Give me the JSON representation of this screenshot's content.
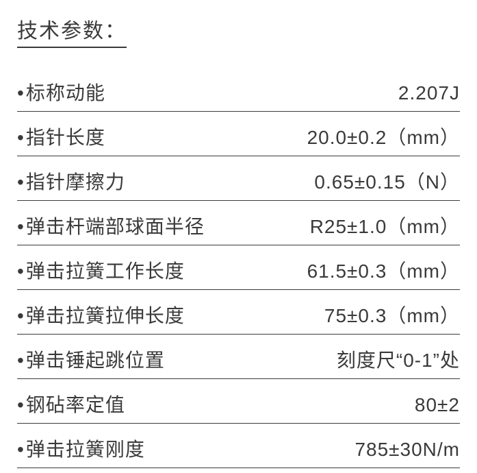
{
  "title": "技术参数：",
  "text_color": "#3a3a3a",
  "background_color": "#ffffff",
  "border_color": "#3a3a3a",
  "title_fontsize": 30,
  "row_fontsize": 28,
  "specs": [
    {
      "label": "标称动能",
      "value": "2.207J"
    },
    {
      "label": "指针长度",
      "value": "20.0±0.2（mm）"
    },
    {
      "label": "指针摩擦力",
      "value": "0.65±0.15（N）"
    },
    {
      "label": "弹击杆端部球面半径",
      "value": "R25±1.0（mm）"
    },
    {
      "label": "弹击拉簧工作长度",
      "value": "61.5±0.3（mm）"
    },
    {
      "label": "弹击拉簧拉伸长度",
      "value": "75±0.3（mm）"
    },
    {
      "label": "弹击锤起跳位置",
      "value": "刻度尺“0-1”处"
    },
    {
      "label": "钢砧率定值",
      "value": "80±2"
    },
    {
      "label": "弹击拉簧刚度",
      "value": "785±30N/m"
    }
  ]
}
